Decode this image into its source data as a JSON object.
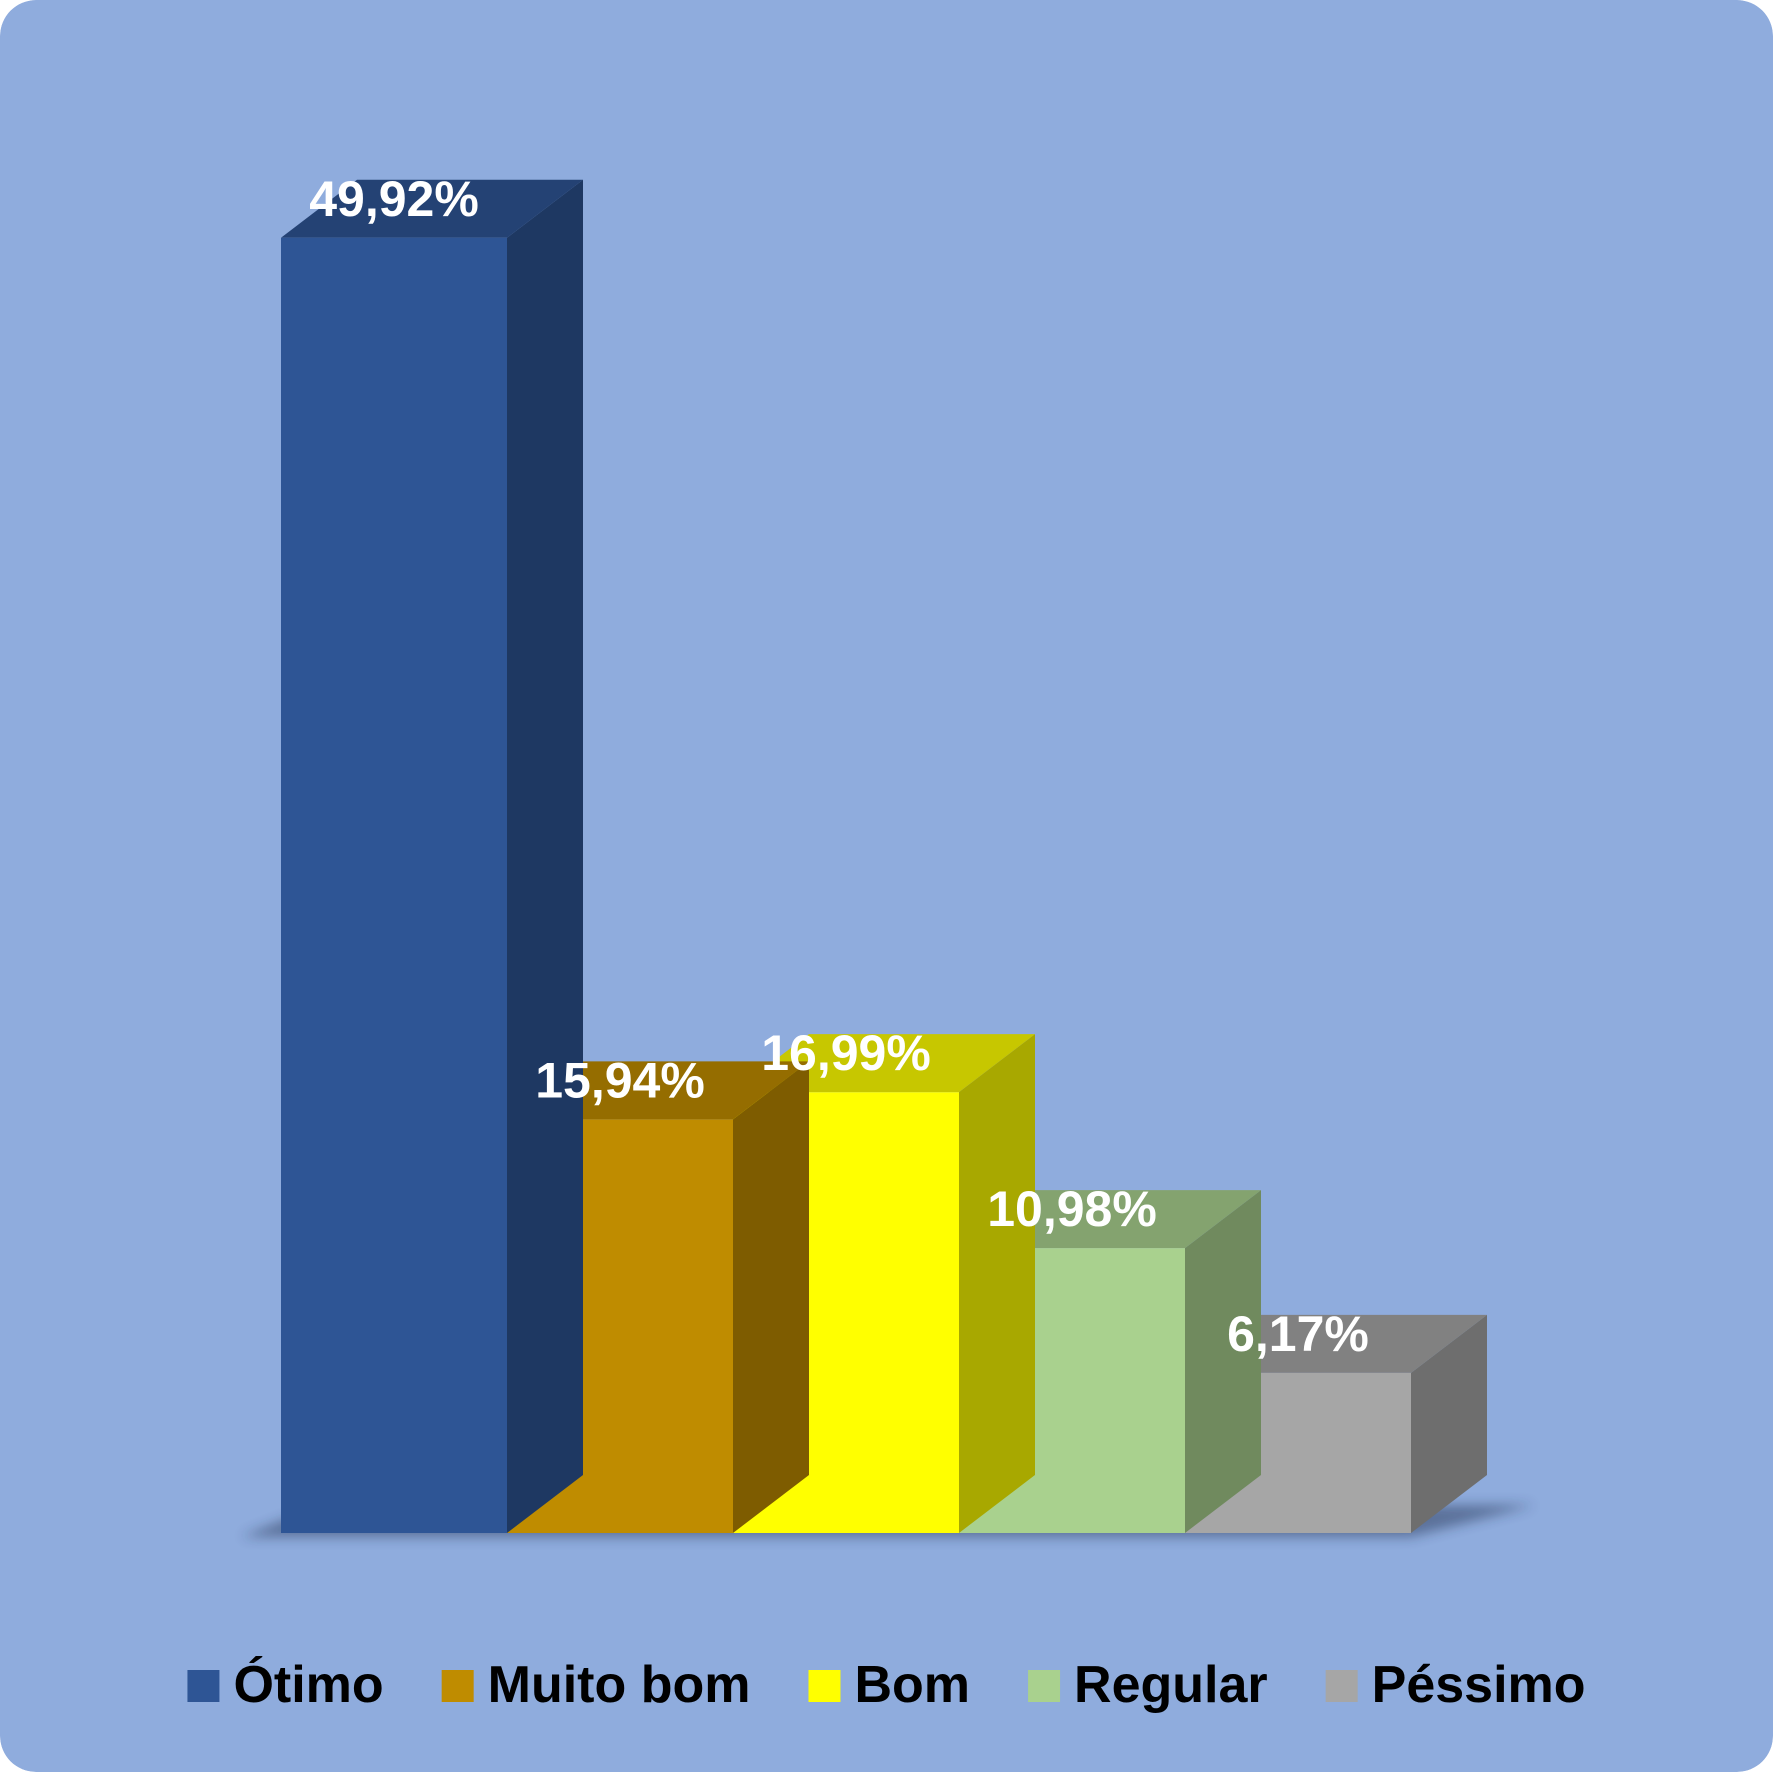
{
  "chart_data": {
    "type": "bar",
    "style": "3d-stepped",
    "categories": [
      "Ótimo",
      "Muito bom",
      "Bom",
      "Regular",
      "Péssimo"
    ],
    "values": [
      49.92,
      15.94,
      16.99,
      10.98,
      6.17
    ],
    "data_labels": [
      "49,92%",
      "15,94%",
      "16,99%",
      "10,98%",
      "6,17%"
    ],
    "value_unit": "%",
    "title": "",
    "xlabel": "",
    "ylabel": "",
    "ylim": [
      0,
      56
    ],
    "grid": false,
    "legend_position": "bottom",
    "colors": {
      "background": "#8FACDD",
      "series": [
        "#2E5595",
        "#BF8C00",
        "#FFFF00",
        "#A9D18E",
        "#A6A6A6"
      ]
    }
  }
}
